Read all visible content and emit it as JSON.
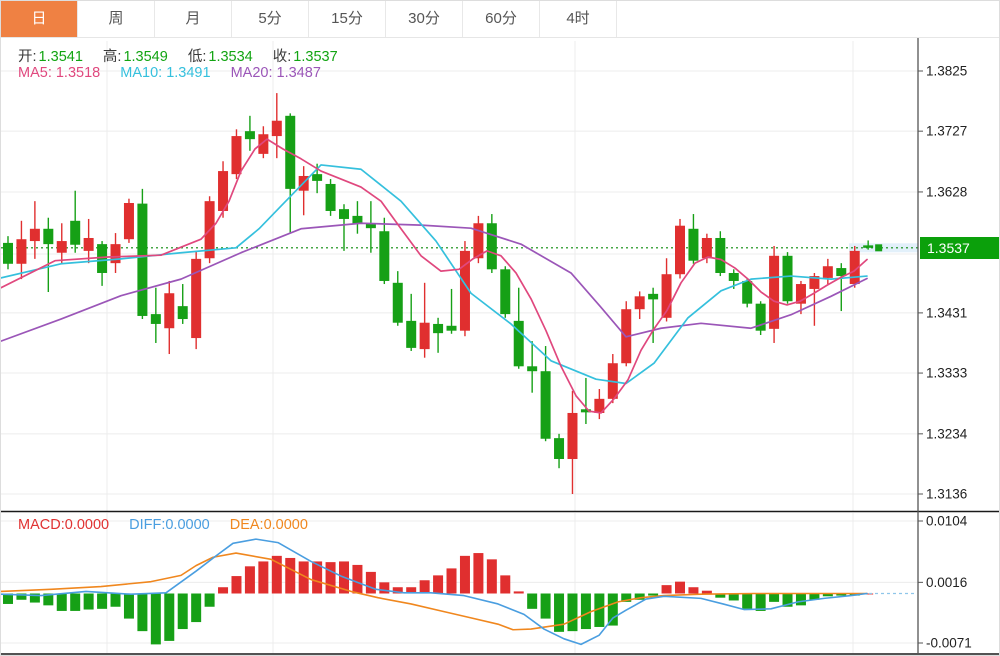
{
  "tabs": [
    {
      "id": "day",
      "label": "日",
      "selected": true
    },
    {
      "id": "week",
      "label": "周",
      "selected": false
    },
    {
      "id": "month",
      "label": "月",
      "selected": false
    },
    {
      "id": "min5",
      "label": "5分",
      "selected": false
    },
    {
      "id": "min15",
      "label": "15分",
      "selected": false
    },
    {
      "id": "min30",
      "label": "30分",
      "selected": false
    },
    {
      "id": "min60",
      "label": "60分",
      "selected": false
    },
    {
      "id": "hour4",
      "label": "4时",
      "selected": false
    }
  ],
  "ohlc_legend": {
    "open_label": "开:",
    "open_value": "1.3541",
    "high_label": "高:",
    "high_value": "1.3549",
    "low_label": "低:",
    "low_value": "1.3534",
    "close_label": "收:",
    "close_value": "1.3537"
  },
  "ma_legend": {
    "ma5": "MA5: 1.3518",
    "ma10": "MA10: 1.3491",
    "ma20": "MA20: 1.3487"
  },
  "macd_legend": {
    "macd": "MACD:0.0000",
    "diff": "DIFF:0.0000",
    "dea": "DEA:0.0000"
  },
  "current_price": "1.3537",
  "colors": {
    "up": "#e02f2f",
    "down": "#16a016",
    "ma5": "#e0487e",
    "ma10": "#35c0dd",
    "ma20": "#9b56b8",
    "diff": "#4a9ee0",
    "dea": "#f0871e",
    "accent_tab": "#ef8143",
    "price_tag": "#0ba00b",
    "grid": "#ececec",
    "axis": "#555555",
    "panel_border": "#1a1a1a",
    "dotted_price": "#0a8a0a",
    "zero_dash": "#8fc6ea",
    "current_band": "#e2f0fa"
  },
  "chart_data": [
    {
      "type": "candlestick",
      "title": "Daily candlestick panel",
      "legend_position": "top-left",
      "grid": true,
      "ylim": [
        1.3136,
        1.3825
      ],
      "y_ticks": [
        {
          "label": "1.3825",
          "price": 1.3825
        },
        {
          "label": "1.3727",
          "price": 1.3727
        },
        {
          "label": "1.3628",
          "price": 1.3628
        },
        {
          "label": "1.3431",
          "price": 1.3431
        },
        {
          "label": "1.3333",
          "price": 1.3333
        },
        {
          "label": "1.3234",
          "price": 1.3234
        },
        {
          "label": "1.3136",
          "price": 1.3136
        }
      ],
      "current_price": 1.3537,
      "candles_ohlc": [
        [
          1.3545,
          1.3556,
          1.3502,
          1.3511
        ],
        [
          1.3511,
          1.3581,
          1.3486,
          1.3551
        ],
        [
          1.3548,
          1.3613,
          1.3519,
          1.3568
        ],
        [
          1.3568,
          1.3586,
          1.3465,
          1.3543
        ],
        [
          1.3529,
          1.3577,
          1.3512,
          1.3548
        ],
        [
          1.3581,
          1.363,
          1.3529,
          1.3542
        ],
        [
          1.3532,
          1.3584,
          1.3512,
          1.3553
        ],
        [
          1.3543,
          1.3548,
          1.3475,
          1.3496
        ],
        [
          1.3512,
          1.3561,
          1.3496,
          1.3543
        ],
        [
          1.3551,
          1.3617,
          1.3545,
          1.361
        ],
        [
          1.3609,
          1.3633,
          1.3421,
          1.3426
        ],
        [
          1.3429,
          1.3472,
          1.3382,
          1.3413
        ],
        [
          1.3406,
          1.3483,
          1.3364,
          1.3463
        ],
        [
          1.3442,
          1.3478,
          1.3413,
          1.3421
        ],
        [
          1.339,
          1.3532,
          1.3372,
          1.3519
        ],
        [
          1.352,
          1.3621,
          1.3512,
          1.3613
        ],
        [
          1.3597,
          1.3678,
          1.3586,
          1.3662
        ],
        [
          1.3657,
          1.373,
          1.3649,
          1.3719
        ],
        [
          1.3727,
          1.3752,
          1.3695,
          1.3714
        ],
        [
          1.369,
          1.3735,
          1.3683,
          1.3722
        ],
        [
          1.3719,
          1.3789,
          1.3683,
          1.3744
        ],
        [
          1.3752,
          1.3756,
          1.3561,
          1.3633
        ],
        [
          1.363,
          1.367,
          1.359,
          1.3654
        ],
        [
          1.3657,
          1.3674,
          1.3626,
          1.3646
        ],
        [
          1.3641,
          1.3649,
          1.3589,
          1.3597
        ],
        [
          1.36,
          1.3608,
          1.3532,
          1.3584
        ],
        [
          1.3589,
          1.3613,
          1.356,
          1.3576
        ],
        [
          1.3577,
          1.3613,
          1.3529,
          1.3569
        ],
        [
          1.3564,
          1.3586,
          1.3478,
          1.3483
        ],
        [
          1.348,
          1.3499,
          1.341,
          1.3415
        ],
        [
          1.3418,
          1.3462,
          1.3369,
          1.3374
        ],
        [
          1.3372,
          1.348,
          1.3358,
          1.3415
        ],
        [
          1.3413,
          1.3423,
          1.3366,
          1.3398
        ],
        [
          1.341,
          1.347,
          1.3397,
          1.3402
        ],
        [
          1.3402,
          1.3548,
          1.3393,
          1.3532
        ],
        [
          1.352,
          1.3589,
          1.3512,
          1.3577
        ],
        [
          1.3577,
          1.3592,
          1.3496,
          1.3502
        ],
        [
          1.3502,
          1.3507,
          1.3423,
          1.3429
        ],
        [
          1.3418,
          1.3472,
          1.334,
          1.3344
        ],
        [
          1.3344,
          1.3385,
          1.3301,
          1.3336
        ],
        [
          1.3336,
          1.3377,
          1.3222,
          1.3226
        ],
        [
          1.3227,
          1.3234,
          1.3178,
          1.3193
        ],
        [
          1.3193,
          1.3304,
          1.3136,
          1.3268
        ],
        [
          1.3274,
          1.3325,
          1.325,
          1.3269
        ],
        [
          1.3268,
          1.3307,
          1.3258,
          1.3291
        ],
        [
          1.3291,
          1.3364,
          1.3284,
          1.3349
        ],
        [
          1.3349,
          1.345,
          1.3344,
          1.3437
        ],
        [
          1.3437,
          1.3466,
          1.3421,
          1.3458
        ],
        [
          1.3462,
          1.3472,
          1.3382,
          1.3453
        ],
        [
          1.3423,
          1.352,
          1.3417,
          1.3494
        ],
        [
          1.3494,
          1.3584,
          1.3487,
          1.3573
        ],
        [
          1.3568,
          1.3592,
          1.3511,
          1.3516
        ],
        [
          1.352,
          1.356,
          1.3512,
          1.3553
        ],
        [
          1.3553,
          1.3564,
          1.3491,
          1.3496
        ],
        [
          1.3496,
          1.3502,
          1.347,
          1.3483
        ],
        [
          1.3483,
          1.3488,
          1.344,
          1.3446
        ],
        [
          1.3446,
          1.345,
          1.3395,
          1.3402
        ],
        [
          1.3405,
          1.354,
          1.3382,
          1.3524
        ],
        [
          1.3524,
          1.353,
          1.3446,
          1.345
        ],
        [
          1.3446,
          1.3483,
          1.3429,
          1.3478
        ],
        [
          1.347,
          1.3496,
          1.341,
          1.3491
        ],
        [
          1.3488,
          1.3519,
          1.3478,
          1.3507
        ],
        [
          1.3504,
          1.3512,
          1.3434,
          1.3491
        ],
        [
          1.3478,
          1.354,
          1.3472,
          1.3532
        ],
        [
          1.3541,
          1.3549,
          1.3534,
          1.3537
        ]
      ],
      "ma5_value": 1.3518,
      "ma10_value": 1.3491,
      "ma20_value": 1.3487,
      "ma5": [
        [
          0,
          1.3472
        ],
        [
          54,
          1.3516
        ],
        [
          107,
          1.3522
        ],
        [
          160,
          1.3525
        ],
        [
          200,
          1.3551
        ],
        [
          215,
          1.3577
        ],
        [
          228,
          1.3613
        ],
        [
          240,
          1.3662
        ],
        [
          254,
          1.3698
        ],
        [
          266,
          1.3714
        ],
        [
          282,
          1.3698
        ],
        [
          300,
          1.3682
        ],
        [
          320,
          1.3662
        ],
        [
          340,
          1.3649
        ],
        [
          360,
          1.3636
        ],
        [
          380,
          1.3613
        ],
        [
          400,
          1.3568
        ],
        [
          420,
          1.3524
        ],
        [
          440,
          1.3499
        ],
        [
          458,
          1.3502
        ],
        [
          472,
          1.3519
        ],
        [
          486,
          1.3532
        ],
        [
          500,
          1.3524
        ],
        [
          515,
          1.3496
        ],
        [
          530,
          1.3454
        ],
        [
          545,
          1.3402
        ],
        [
          560,
          1.3344
        ],
        [
          575,
          1.3296
        ],
        [
          588,
          1.3271
        ],
        [
          600,
          1.3268
        ],
        [
          613,
          1.3291
        ],
        [
          627,
          1.3322
        ],
        [
          640,
          1.337
        ],
        [
          653,
          1.3405
        ],
        [
          666,
          1.3435
        ],
        [
          680,
          1.348
        ],
        [
          694,
          1.3512
        ],
        [
          707,
          1.3522
        ],
        [
          720,
          1.3518
        ],
        [
          734,
          1.3504
        ],
        [
          747,
          1.3486
        ],
        [
          760,
          1.3465
        ],
        [
          773,
          1.345
        ],
        [
          786,
          1.3444
        ],
        [
          799,
          1.345
        ],
        [
          813,
          1.3463
        ],
        [
          826,
          1.3476
        ],
        [
          839,
          1.3488
        ],
        [
          853,
          1.3499
        ],
        [
          866,
          1.3518
        ]
      ],
      "ma10": [
        [
          0,
          1.3488
        ],
        [
          60,
          1.3511
        ],
        [
          120,
          1.3519
        ],
        [
          180,
          1.3529
        ],
        [
          235,
          1.3537
        ],
        [
          258,
          1.3568
        ],
        [
          280,
          1.3605
        ],
        [
          320,
          1.3672
        ],
        [
          360,
          1.3665
        ],
        [
          400,
          1.3613
        ],
        [
          435,
          1.3548
        ],
        [
          470,
          1.3463
        ],
        [
          510,
          1.3413
        ],
        [
          550,
          1.3353
        ],
        [
          595,
          1.3323
        ],
        [
          625,
          1.3316
        ],
        [
          653,
          1.3349
        ],
        [
          687,
          1.3423
        ],
        [
          720,
          1.3467
        ],
        [
          750,
          1.3486
        ],
        [
          790,
          1.3491
        ],
        [
          830,
          1.3486
        ],
        [
          866,
          1.3491
        ]
      ],
      "ma20": [
        [
          0,
          1.3385
        ],
        [
          60,
          1.3421
        ],
        [
          120,
          1.3459
        ],
        [
          180,
          1.3486
        ],
        [
          240,
          1.3529
        ],
        [
          300,
          1.3568
        ],
        [
          360,
          1.3577
        ],
        [
          420,
          1.3574
        ],
        [
          470,
          1.3569
        ],
        [
          520,
          1.3543
        ],
        [
          570,
          1.3496
        ],
        [
          600,
          1.344
        ],
        [
          625,
          1.3392
        ],
        [
          660,
          1.3406
        ],
        [
          700,
          1.3414
        ],
        [
          750,
          1.3406
        ],
        [
          790,
          1.3428
        ],
        [
          830,
          1.3458
        ],
        [
          866,
          1.3487
        ]
      ]
    },
    {
      "type": "bar",
      "title": "MACD panel",
      "grid": true,
      "ylim": [
        -0.0071,
        0.0104
      ],
      "y_ticks": [
        {
          "label": "0.0104",
          "value": 0.0104
        },
        {
          "label": "0.0016",
          "value": 0.0016
        },
        {
          "label": "-0.0071",
          "value": -0.0071
        }
      ],
      "macd_value": 0.0,
      "diff_value": 0.0,
      "dea_value": 0.0,
      "histogram": [
        -0.0015,
        -0.0009,
        -0.0013,
        -0.0017,
        -0.0025,
        -0.0025,
        -0.0023,
        -0.0022,
        -0.0019,
        -0.0036,
        -0.0054,
        -0.0073,
        -0.0068,
        -0.0051,
        -0.0041,
        -0.0019,
        0.0009,
        0.0025,
        0.0039,
        0.0046,
        0.0054,
        0.0051,
        0.0046,
        0.0046,
        0.0045,
        0.0046,
        0.0041,
        0.0031,
        0.0016,
        0.0009,
        0.0009,
        0.0019,
        0.0026,
        0.0036,
        0.0054,
        0.0058,
        0.0049,
        0.0026,
        0.0003,
        -0.0022,
        -0.0036,
        -0.0055,
        -0.0054,
        -0.0051,
        -0.0048,
        -0.0046,
        -0.0012,
        -0.0009,
        -0.0003,
        0.0012,
        0.0017,
        0.0009,
        0.0004,
        -0.0006,
        -0.001,
        -0.0022,
        -0.0025,
        -0.0012,
        -0.0019,
        -0.0017,
        -0.0009,
        -0.0004,
        -0.0003,
        -0.0003,
        0
      ],
      "diff_line": [
        [
          0,
          -0.0001
        ],
        [
          40,
          -0.0003
        ],
        [
          85,
          0.0003
        ],
        [
          130,
          -0.0001
        ],
        [
          165,
          0.0001
        ],
        [
          195,
          0.0032
        ],
        [
          215,
          0.0054
        ],
        [
          232,
          0.0072
        ],
        [
          255,
          0.0078
        ],
        [
          277,
          0.0073
        ],
        [
          310,
          0.0046
        ],
        [
          340,
          0.0025
        ],
        [
          375,
          0.0006
        ],
        [
          403,
          0.0001
        ],
        [
          430,
          0.0001
        ],
        [
          463,
          -0.0003
        ],
        [
          497,
          -0.0015
        ],
        [
          523,
          -0.003
        ],
        [
          543,
          -0.0051
        ],
        [
          563,
          -0.0065
        ],
        [
          580,
          -0.0073
        ],
        [
          598,
          -0.006
        ],
        [
          612,
          -0.0035
        ],
        [
          625,
          -0.0024
        ],
        [
          645,
          -0.0008
        ],
        [
          663,
          -0.0004
        ],
        [
          700,
          -0.0007
        ],
        [
          722,
          -0.0015
        ],
        [
          743,
          -0.0023
        ],
        [
          770,
          -0.0022
        ],
        [
          797,
          -0.0012
        ],
        [
          823,
          -0.0007
        ],
        [
          850,
          -0.0003
        ],
        [
          866,
          0
        ]
      ],
      "dea_line": [
        [
          0,
          0.0003
        ],
        [
          50,
          0.0006
        ],
        [
          100,
          0.001
        ],
        [
          150,
          0.0017
        ],
        [
          180,
          0.0026
        ],
        [
          195,
          0.004
        ],
        [
          212,
          0.0052
        ],
        [
          235,
          0.0058
        ],
        [
          270,
          0.0049
        ],
        [
          310,
          0.002
        ],
        [
          350,
          0.0003
        ],
        [
          377,
          -0.0006
        ],
        [
          410,
          -0.0015
        ],
        [
          443,
          -0.0026
        ],
        [
          470,
          -0.0035
        ],
        [
          497,
          -0.0044
        ],
        [
          512,
          -0.0052
        ],
        [
          530,
          -0.0051
        ],
        [
          563,
          -0.0044
        ],
        [
          590,
          -0.0026
        ],
        [
          617,
          -0.0012
        ],
        [
          640,
          -0.0006
        ],
        [
          663,
          -0.0003
        ],
        [
          700,
          -0.0001
        ],
        [
          753,
          0
        ],
        [
          800,
          0
        ],
        [
          866,
          0
        ]
      ]
    }
  ]
}
